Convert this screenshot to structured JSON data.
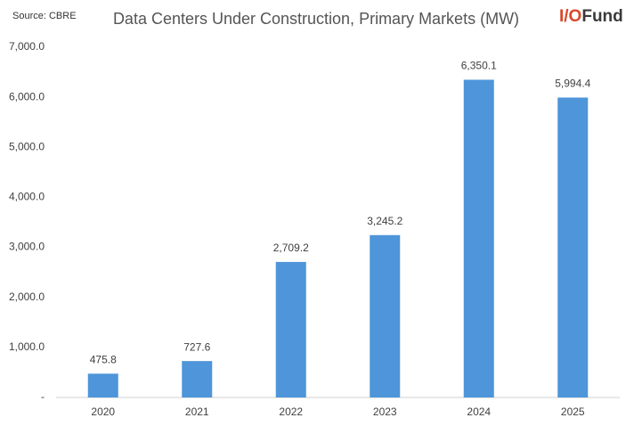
{
  "chart_data": {
    "type": "bar",
    "title": "Data Centers Under Construction, Primary Markets (MW)",
    "source": "Source: CBRE",
    "logo": [
      {
        "text": "I/O",
        "color": "#d9482b"
      },
      {
        "text": "Fund",
        "color": "#3a3a3a"
      }
    ],
    "categories": [
      "2020",
      "2021",
      "2022",
      "2023",
      "2024",
      "2025"
    ],
    "values": [
      475.8,
      727.6,
      2709.2,
      3245.2,
      6350.1,
      5994.4
    ],
    "value_labels": [
      "475.8",
      "727.6",
      "2,709.2",
      "3,245.2",
      "6,350.1",
      "5,994.4"
    ],
    "color": "#4e95d9",
    "ylim": [
      0,
      7000
    ],
    "yticks": [
      {
        "value": 0,
        "label": "-"
      },
      {
        "value": 1000,
        "label": "1,000.0"
      },
      {
        "value": 2000,
        "label": "2,000.0"
      },
      {
        "value": 3000,
        "label": "3,000.0"
      },
      {
        "value": 4000,
        "label": "4,000.0"
      },
      {
        "value": 5000,
        "label": "5,000.0"
      },
      {
        "value": 6000,
        "label": "6,000.0"
      },
      {
        "value": 7000,
        "label": "7,000.0"
      }
    ],
    "grid": false
  }
}
